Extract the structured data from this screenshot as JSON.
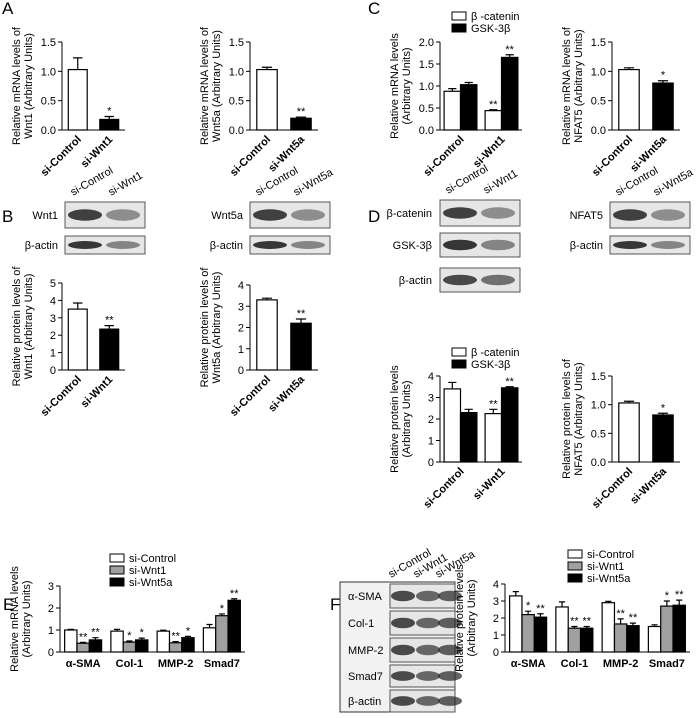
{
  "panel_labels": [
    "A",
    "B",
    "C",
    "D",
    "E",
    "F"
  ],
  "blots": [
    {
      "lanes": [
        "si-Control",
        "si-Wnt1"
      ],
      "rows": [
        "Wnt1",
        "β-actin"
      ]
    },
    {
      "lanes": [
        "si-Control",
        "si-Wnt5a"
      ],
      "rows": [
        "Wnt5a",
        "β-actin"
      ]
    },
    {
      "lanes": [
        "si-Control",
        "si-Wnt1"
      ],
      "rows": [
        "β-catenin",
        "GSK-3β",
        "β-actin"
      ]
    },
    {
      "lanes": [
        "si-Control",
        "si-Wnt5a"
      ],
      "rows": [
        "NFAT5",
        "β-actin"
      ]
    },
    {
      "lanes": [
        "si-Control",
        "si-Wnt1",
        "si-Wnt5a"
      ],
      "rows": [
        "α-SMA",
        "Col-1",
        "MMP-2",
        "Smad7",
        "β-actin"
      ]
    }
  ],
  "chart_data": [
    {
      "type": "bar",
      "ylabel": [
        "Relative mRNA levels of",
        "Wnt1 (Arbitrary Units)"
      ],
      "categories": [
        "si-Control",
        "si-Wnt1"
      ],
      "series": [
        {
          "colors": [
            "#ffffff",
            "#000000"
          ],
          "values": [
            1.03,
            0.18
          ],
          "errors": [
            0.2,
            0.05
          ],
          "annotations": [
            null,
            "*"
          ]
        }
      ],
      "ylim": [
        0,
        1.5
      ],
      "yticks": [
        {
          "value": 0,
          "label": "0.0"
        },
        0.5,
        {
          "value": 1,
          "label": "1.0"
        },
        1.5
      ]
    },
    {
      "type": "bar",
      "ylabel": [
        "Relative mRNA levels of",
        "Wnt5a (Arbitrary Units)"
      ],
      "categories": [
        "si-Control",
        "si-Wnt5a"
      ],
      "series": [
        {
          "colors": [
            "#ffffff",
            "#000000"
          ],
          "values": [
            1.03,
            0.2
          ],
          "errors": [
            0.04,
            0.02
          ],
          "annotations": [
            null,
            "**"
          ]
        }
      ],
      "ylim": [
        0,
        1.5
      ],
      "yticks": [
        {
          "value": 0,
          "label": "0.0"
        },
        0.5,
        {
          "value": 1,
          "label": "1.0"
        },
        1.5
      ]
    },
    {
      "type": "bar",
      "ylabel": [
        "Relative mRNA levels",
        "(Arbitrary Units)"
      ],
      "categories": [
        "si-Control",
        "si-Wnt1"
      ],
      "series": [
        {
          "name": "β -catenin",
          "color": "#ffffff",
          "values": [
            0.88,
            0.44
          ],
          "errors": [
            0.06,
            0.02
          ],
          "annotations": [
            null,
            "**"
          ]
        },
        {
          "name": "GSK-3β",
          "color": "#000000",
          "values": [
            1.03,
            1.65
          ],
          "errors": [
            0.05,
            0.06
          ],
          "annotations": [
            null,
            "**"
          ]
        }
      ],
      "ylim": [
        0,
        2
      ],
      "yticks": [
        {
          "value": 0,
          "label": "0.0"
        },
        0.5,
        {
          "value": 1,
          "label": "1.0"
        },
        1.5,
        {
          "value": 2,
          "label": "2.0"
        }
      ]
    },
    {
      "type": "bar",
      "ylabel": [
        "Relative mRNA levels of",
        "NFAT5 (Arbitrary Units)"
      ],
      "categories": [
        "si-Control",
        "si-Wnt5a"
      ],
      "series": [
        {
          "colors": [
            "#ffffff",
            "#000000"
          ],
          "values": [
            1.03,
            0.8
          ],
          "errors": [
            0.03,
            0.04
          ],
          "annotations": [
            null,
            "*"
          ]
        }
      ],
      "ylim": [
        0,
        1.5
      ],
      "yticks": [
        {
          "value": 0,
          "label": "0.0"
        },
        0.5,
        {
          "value": 1,
          "label": "1.0"
        },
        1.5
      ]
    },
    {
      "type": "bar",
      "ylabel": [
        "Relative protein levels of",
        "Wnt1 (Arbitrary Units)"
      ],
      "categories": [
        "si-Control",
        "si-Wnt1"
      ],
      "series": [
        {
          "colors": [
            "#ffffff",
            "#000000"
          ],
          "values": [
            3.5,
            2.35
          ],
          "errors": [
            0.35,
            0.2
          ],
          "annotations": [
            null,
            "**"
          ]
        }
      ],
      "ylim": [
        0,
        5
      ],
      "yticks": [
        0,
        1,
        2,
        3,
        4,
        5
      ]
    },
    {
      "type": "bar",
      "ylabel": [
        "Relative protein levels of",
        "Wnt5a (Arbitrary Units)"
      ],
      "categories": [
        "si-Control",
        "si-Wnt5a"
      ],
      "series": [
        {
          "colors": [
            "#ffffff",
            "#000000"
          ],
          "values": [
            3.3,
            2.2
          ],
          "errors": [
            0.08,
            0.2
          ],
          "annotations": [
            null,
            "**"
          ]
        }
      ],
      "ylim": [
        0,
        4
      ],
      "yticks": [
        0,
        1,
        2,
        3,
        4
      ]
    },
    {
      "type": "bar",
      "ylabel": [
        "Relative protein levels",
        "(Arbitrary Units)"
      ],
      "categories": [
        "si-Control",
        "si-Wnt1"
      ],
      "series": [
        {
          "name": "β -catenin",
          "color": "#ffffff",
          "values": [
            3.4,
            2.25
          ],
          "errors": [
            0.3,
            0.2
          ],
          "annotations": [
            null,
            "**"
          ]
        },
        {
          "name": "GSK-3β",
          "color": "#000000",
          "values": [
            2.3,
            3.45
          ],
          "errors": [
            0.15,
            0.05
          ],
          "annotations": [
            null,
            "**"
          ]
        }
      ],
      "ylim": [
        0,
        4
      ],
      "yticks": [
        0,
        1,
        2,
        3,
        4
      ]
    },
    {
      "type": "bar",
      "ylabel": [
        "Relative protein levels of",
        "NFAT5 (Arbitrary Units)"
      ],
      "categories": [
        "si-Control",
        "si-Wnt5a"
      ],
      "series": [
        {
          "colors": [
            "#ffffff",
            "#000000"
          ],
          "values": [
            1.03,
            0.82
          ],
          "errors": [
            0.03,
            0.03
          ],
          "annotations": [
            null,
            "*"
          ]
        }
      ],
      "ylim": [
        0,
        1.5
      ],
      "yticks": [
        {
          "value": 0,
          "label": "0.0"
        },
        0.5,
        {
          "value": 1,
          "label": "1.0"
        },
        1.5
      ]
    },
    {
      "type": "bar",
      "ylabel": [
        "Relative mRNA levels",
        "(Arbitrary Units)"
      ],
      "categories": [
        "α-SMA",
        "Col-1",
        "MMP-2",
        "Smad7"
      ],
      "series": [
        {
          "name": "si-Control",
          "color": "#ffffff",
          "values": [
            1.0,
            0.95,
            0.95,
            1.1
          ],
          "errors": [
            0.03,
            0.08,
            0.04,
            0.15
          ],
          "annotations": [
            null,
            null,
            null,
            null
          ]
        },
        {
          "name": "si-Wnt1",
          "color": "#a0a0a0",
          "values": [
            0.4,
            0.45,
            0.42,
            1.65
          ],
          "errors": [
            0.04,
            0.05,
            0.05,
            0.08
          ],
          "annotations": [
            "**",
            "*",
            "**",
            "*"
          ]
        },
        {
          "name": "si-Wnt5a",
          "color": "#000000",
          "values": [
            0.55,
            0.55,
            0.65,
            2.35
          ],
          "errors": [
            0.1,
            0.08,
            0.06,
            0.07
          ],
          "annotations": [
            "**",
            "*",
            "*",
            "**"
          ]
        }
      ],
      "ylim": [
        0,
        3
      ],
      "yticks": [
        0,
        1,
        2,
        3
      ]
    },
    {
      "type": "bar",
      "ylabel": [
        "Relative protein levels",
        "(Arbitrary Units)"
      ],
      "categories": [
        "α-SMA",
        "Col-1",
        "MMP-2",
        "Smad7"
      ],
      "series": [
        {
          "name": "si-Control",
          "color": "#ffffff",
          "values": [
            3.3,
            2.65,
            2.9,
            1.5
          ],
          "errors": [
            0.25,
            0.3,
            0.08,
            0.1
          ],
          "annotations": [
            null,
            null,
            null,
            null
          ]
        },
        {
          "name": "si-Wnt1",
          "color": "#a0a0a0",
          "values": [
            2.2,
            1.4,
            1.65,
            2.7
          ],
          "errors": [
            0.2,
            0.1,
            0.3,
            0.3
          ],
          "annotations": [
            "*",
            "**",
            "**",
            "*"
          ]
        },
        {
          "name": "si-Wnt5a",
          "color": "#000000",
          "values": [
            2.05,
            1.4,
            1.55,
            2.75
          ],
          "errors": [
            0.2,
            0.1,
            0.15,
            0.3
          ],
          "annotations": [
            "**",
            "**",
            "**",
            "**"
          ]
        }
      ],
      "ylim": [
        0,
        4
      ],
      "yticks": [
        0,
        1,
        2,
        3,
        4
      ]
    }
  ]
}
